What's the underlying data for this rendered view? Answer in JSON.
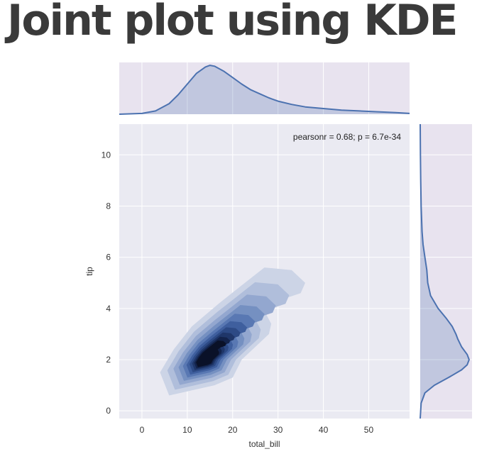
{
  "title": "Joint plot using KDE",
  "chart_data": {
    "type": "kde_jointplot",
    "xlabel": "total_bill",
    "ylabel": "tip",
    "xlim": [
      -5,
      59
    ],
    "ylim": [
      -0.3,
      11.2
    ],
    "xticks": [
      0,
      10,
      20,
      30,
      40,
      50
    ],
    "yticks": [
      0,
      2,
      4,
      6,
      8,
      10
    ],
    "annotation": "pearsonr = 0.68; p = 6.7e-34",
    "grid": true,
    "colors": {
      "line": "#4c72b0",
      "marginal_bg": "#e8e3ef",
      "joint_bg": "#eaeaf2",
      "contour_levels": [
        "#ccd4e6",
        "#b0bedb",
        "#93a7cf",
        "#7590c1",
        "#5978b3",
        "#3f5f9e",
        "#2d4a85",
        "#1f3669",
        "#13234b",
        "#0a1128"
      ]
    },
    "joint_density_mode": {
      "x": 14,
      "y": 2.0
    },
    "marginal_x": {
      "x": [
        -5,
        0,
        3,
        6,
        8,
        10,
        12,
        14,
        15,
        16,
        18,
        20,
        22,
        24,
        26,
        28,
        30,
        33,
        36,
        40,
        44,
        48,
        52,
        56,
        59
      ],
      "density": [
        0.0,
        0.001,
        0.004,
        0.013,
        0.024,
        0.037,
        0.05,
        0.058,
        0.06,
        0.059,
        0.053,
        0.045,
        0.037,
        0.03,
        0.025,
        0.02,
        0.016,
        0.012,
        0.009,
        0.007,
        0.005,
        0.004,
        0.003,
        0.002,
        0.001
      ]
    },
    "marginal_y": {
      "y": [
        -0.3,
        0.3,
        0.7,
        1.0,
        1.3,
        1.6,
        1.8,
        2.0,
        2.2,
        2.5,
        2.8,
        3.0,
        3.3,
        3.6,
        4.0,
        4.5,
        5.0,
        5.5,
        6.0,
        6.5,
        7.0,
        8.0,
        9.0,
        10.0,
        11.2
      ],
      "density": [
        0.0,
        0.01,
        0.05,
        0.15,
        0.3,
        0.44,
        0.5,
        0.52,
        0.5,
        0.44,
        0.4,
        0.38,
        0.34,
        0.28,
        0.19,
        0.11,
        0.08,
        0.07,
        0.05,
        0.03,
        0.02,
        0.01,
        0.005,
        0.002,
        0.0
      ]
    }
  }
}
